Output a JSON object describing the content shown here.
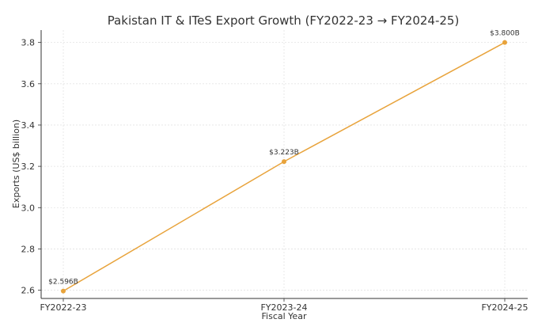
{
  "chart_data": {
    "type": "line",
    "title": "Pakistan IT & ITeS Export Growth (FY2022-23 → FY2024-25)",
    "xlabel": "Fiscal Year",
    "ylabel": "Exports (US$ billion)",
    "categories": [
      "FY2022-23",
      "FY2023-24",
      "FY2024-25"
    ],
    "series": [
      {
        "values": [
          2.596,
          3.223,
          3.8
        ],
        "color": "#e8a33b"
      }
    ],
    "data_labels": [
      "$2.596B",
      "$3.223B",
      "$3.800B"
    ],
    "yticks": [
      "2.6",
      "2.8",
      "3.0",
      "3.2",
      "3.4",
      "3.6",
      "3.8"
    ],
    "ylim": [
      2.56,
      3.86
    ],
    "grid": true,
    "legend": "none"
  }
}
